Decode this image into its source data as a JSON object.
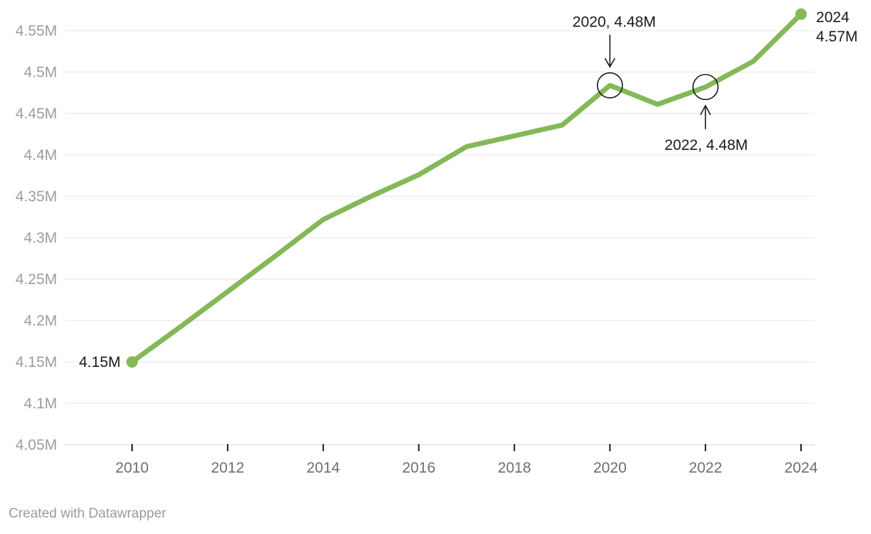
{
  "chart_data": {
    "type": "line",
    "title": "",
    "xlabel": "",
    "ylabel": "",
    "unit": "M",
    "grid": "horizontal",
    "legend": "none",
    "ylim": [
      4.05,
      4.57
    ],
    "xlim": [
      2010,
      2024
    ],
    "x": [
      2010,
      2011,
      2012,
      2013,
      2014,
      2015,
      2016,
      2017,
      2018,
      2019,
      2020,
      2021,
      2022,
      2023,
      2024
    ],
    "series": [
      {
        "name": "value",
        "values": [
          4.15,
          4.192,
          4.235,
          4.278,
          4.322,
          4.35,
          4.376,
          4.41,
          4.423,
          4.436,
          4.484,
          4.461,
          4.482,
          4.513,
          4.57
        ]
      }
    ],
    "y_ticks": [
      {
        "value": 4.55,
        "label": "4.55M"
      },
      {
        "value": 4.5,
        "label": "4.5M"
      },
      {
        "value": 4.45,
        "label": "4.45M"
      },
      {
        "value": 4.4,
        "label": "4.4M"
      },
      {
        "value": 4.35,
        "label": "4.35M"
      },
      {
        "value": 4.3,
        "label": "4.3M"
      },
      {
        "value": 4.25,
        "label": "4.25M"
      },
      {
        "value": 4.2,
        "label": "4.2M"
      },
      {
        "value": 4.15,
        "label": "4.15M"
      },
      {
        "value": 4.1,
        "label": "4.1M"
      },
      {
        "value": 4.05,
        "label": "4.05M"
      }
    ],
    "x_ticks": [
      {
        "value": 2010,
        "label": "2010"
      },
      {
        "value": 2012,
        "label": "2012"
      },
      {
        "value": 2014,
        "label": "2014"
      },
      {
        "value": 2016,
        "label": "2016"
      },
      {
        "value": 2018,
        "label": "2018"
      },
      {
        "value": 2020,
        "label": "2020"
      },
      {
        "value": 2022,
        "label": "2022"
      },
      {
        "value": 2024,
        "label": "2024"
      }
    ],
    "markers": [
      {
        "year": 2010,
        "value": 4.15
      },
      {
        "year": 2024,
        "value": 4.57
      }
    ],
    "annotations": [
      {
        "kind": "point-label",
        "side": "left",
        "lines": [
          "4.15M"
        ],
        "year": 2010,
        "value": 4.15
      },
      {
        "kind": "callout",
        "arrow": "down",
        "text": "2020, 4.48M",
        "year": 2020,
        "value": 4.484,
        "circled": true
      },
      {
        "kind": "callout",
        "arrow": "up",
        "text": "2022, 4.48M",
        "year": 2022,
        "value": 4.482,
        "circled": true
      },
      {
        "kind": "point-label",
        "side": "right",
        "lines": [
          "2024",
          "4.57M"
        ],
        "year": 2024,
        "value": 4.57
      }
    ],
    "colors": {
      "line": "#84b858",
      "grid": "#e5e5e5",
      "axis_baseline": "#d6d6d6",
      "tick_mark": "#1a1a1a",
      "y_label": "#9d9d9d",
      "x_label": "#6e6e6e",
      "annotation": "#1a1a1a",
      "background": "#ffffff",
      "footer": "#9b9b9b"
    }
  },
  "footer": {
    "text": "Created with Datawrapper"
  }
}
